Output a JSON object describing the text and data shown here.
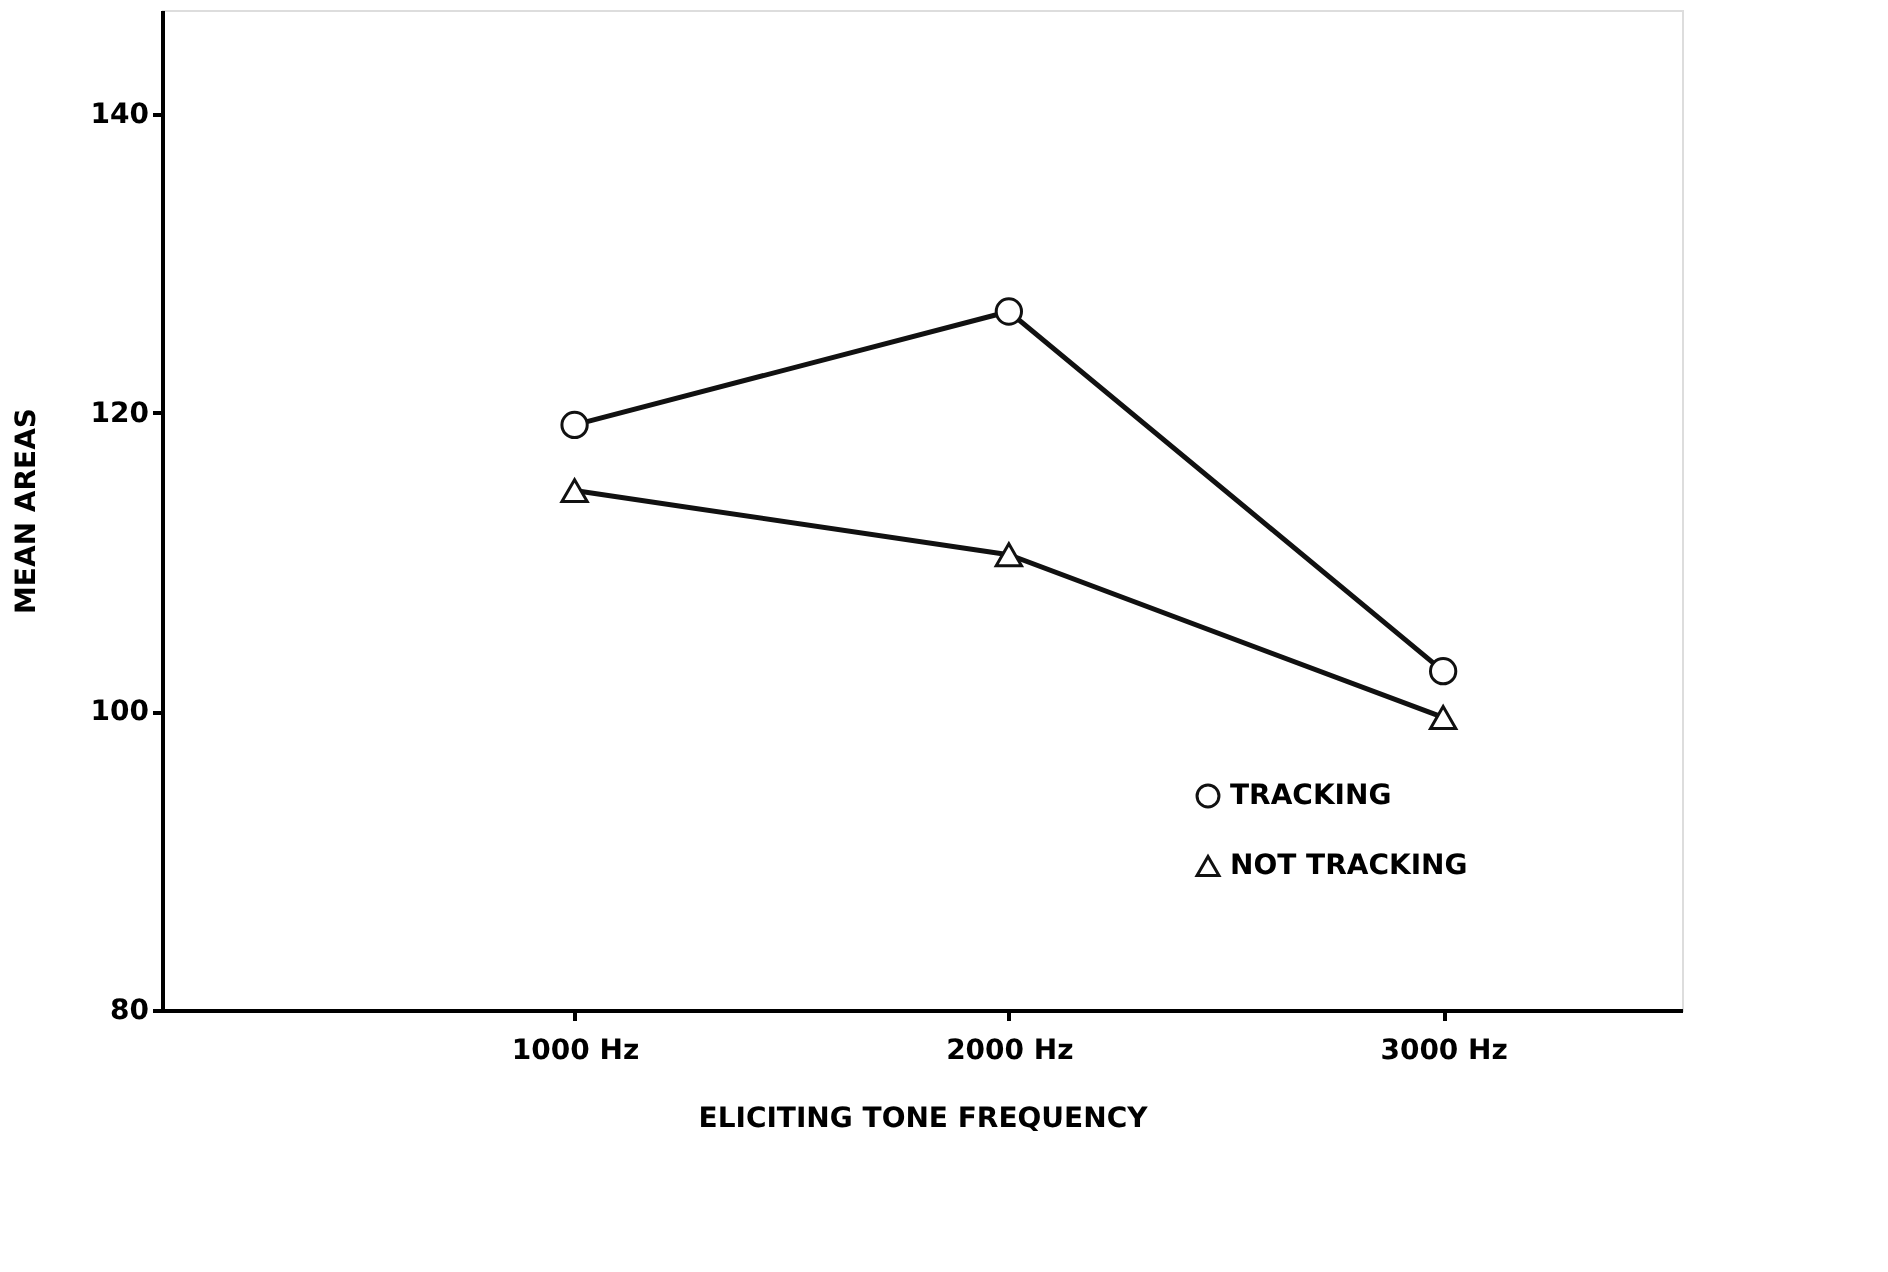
{
  "chart_data": {
    "type": "line",
    "xlabel": "ELICITING   TONE   FREQUENCY",
    "ylabel": "MEAN   AREAS",
    "categories": [
      "1000  Hz",
      "2000  Hz",
      "3000  Hz"
    ],
    "series": [
      {
        "name": "TRACKING",
        "color": "#111111",
        "marker": "circle",
        "values": [
          119.2,
          126.8,
          102.7
        ]
      },
      {
        "name": "NOT   TRACKING",
        "color": "#111111",
        "marker": "triangle",
        "values": [
          114.8,
          110.5,
          99.6
        ]
      }
    ],
    "ylim": [
      80,
      147
    ],
    "yticks": [
      80,
      100,
      120,
      140
    ],
    "grid": false,
    "legend": "bottom right",
    "line_style": "solid"
  }
}
